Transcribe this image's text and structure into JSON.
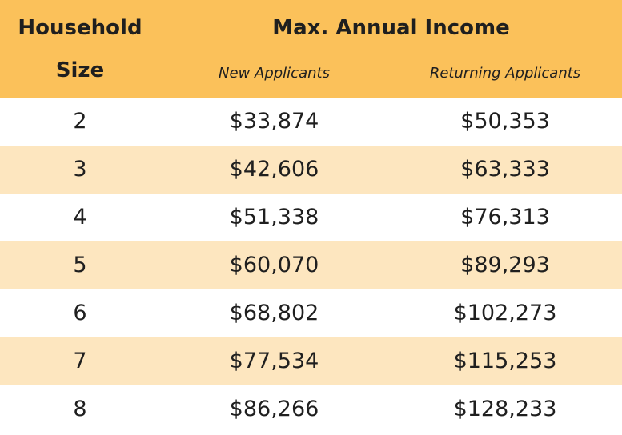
{
  "header": {
    "household_line1": "Household",
    "household_line2": "Size",
    "title": "Max. Annual Income",
    "new_applicants": "New Applicants",
    "returning_applicants": "Returning Applicants"
  },
  "rows": [
    {
      "size": "2",
      "new": "$33,874",
      "returning": "$50,353"
    },
    {
      "size": "3",
      "new": "$42,606",
      "returning": "$63,333"
    },
    {
      "size": "4",
      "new": "$51,338",
      "returning": "$76,313"
    },
    {
      "size": "5",
      "new": "$60,070",
      "returning": "$89,293"
    },
    {
      "size": "6",
      "new": "$68,802",
      "returning": "$102,273"
    },
    {
      "size": "7",
      "new": "$77,534",
      "returning": "$115,253"
    },
    {
      "size": "8",
      "new": "$86,266",
      "returning": "$128,233"
    }
  ],
  "colors": {
    "header_bg": "#fbc15a",
    "alt_row_bg": "#fde6bf",
    "row_bg": "#ffffff"
  }
}
